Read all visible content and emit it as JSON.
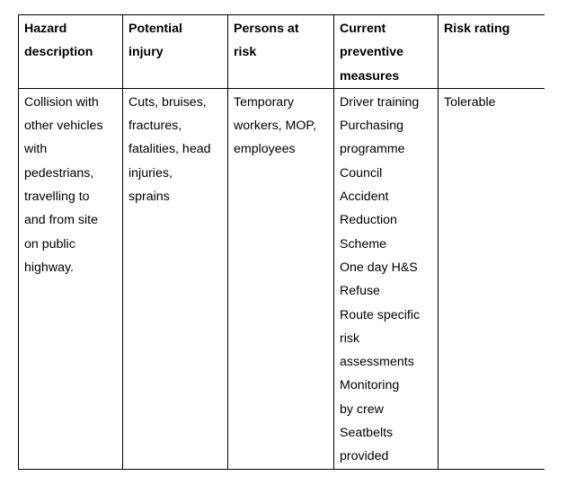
{
  "table": {
    "headers": [
      "Hazard\ndescription",
      "Potential\ninjury",
      "Persons at\nrisk",
      "Current\npreventive\nmeasures",
      "Risk rating"
    ],
    "rows": [
      [
        "Collision with\nother vehicles\nwith\npedestrians,\ntravelling to\nand from site\non public\nhighway.",
        "Cuts, bruises,\nfractures,\nfatalities, head\ninjuries,\nsprains",
        "Temporary\nworkers, MOP,\nemployees",
        "Driver training\nPurchasing\nprogramme\nCouncil\nAccident\nReduction\nScheme\nOne day H&S\nRefuse\nRoute specific\nrisk\nassessments\nMonitoring\nby crew\nSeatbelts\nprovided",
        "Tolerable"
      ]
    ]
  }
}
